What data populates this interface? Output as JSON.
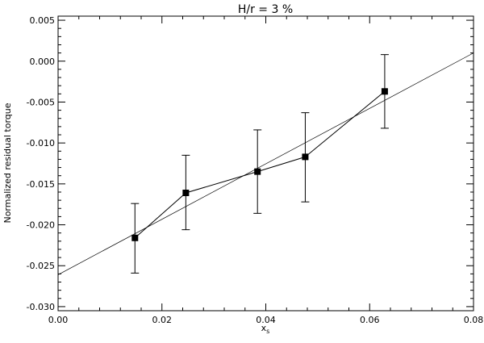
{
  "chart_data": {
    "type": "scatter",
    "title": "H/r = 3 %",
    "xlabel": "x",
    "xlabel_sub": "s",
    "ylabel": "Normalized residual torque",
    "xlim": [
      0.0,
      0.08
    ],
    "ylim": [
      -0.0305,
      0.0055
    ],
    "x_ticks": [
      0.0,
      0.02,
      0.04,
      0.06,
      0.08
    ],
    "x_tick_labels": [
      "0.00",
      "0.02",
      "0.04",
      "0.06",
      "0.08"
    ],
    "y_ticks": [
      -0.03,
      -0.025,
      -0.02,
      -0.015,
      -0.01,
      -0.005,
      0.0,
      0.005
    ],
    "y_tick_labels": [
      "-0.030",
      "-0.025",
      "-0.020",
      "-0.015",
      "-0.010",
      "-0.005",
      "0.000",
      "0.005"
    ],
    "grid": false,
    "legend": "none",
    "series": [
      {
        "markers": "filled-square",
        "connected": true,
        "points": [
          {
            "x": 0.0148,
            "y": -0.0216,
            "err_low": -0.0259,
            "err_high": -0.0174
          },
          {
            "x": 0.0246,
            "y": -0.0161,
            "err_low": -0.0206,
            "err_high": -0.0115
          },
          {
            "x": 0.0384,
            "y": -0.0135,
            "err_low": -0.0186,
            "err_high": -0.0084
          },
          {
            "x": 0.0476,
            "y": -0.0117,
            "err_low": -0.0172,
            "err_high": -0.0063
          },
          {
            "x": 0.0629,
            "y": -0.0037,
            "err_low": -0.0082,
            "err_high": 0.0008
          }
        ]
      }
    ],
    "fit_line": {
      "x": [
        0.0,
        0.08
      ],
      "y": [
        -0.0261,
        0.001
      ]
    }
  }
}
